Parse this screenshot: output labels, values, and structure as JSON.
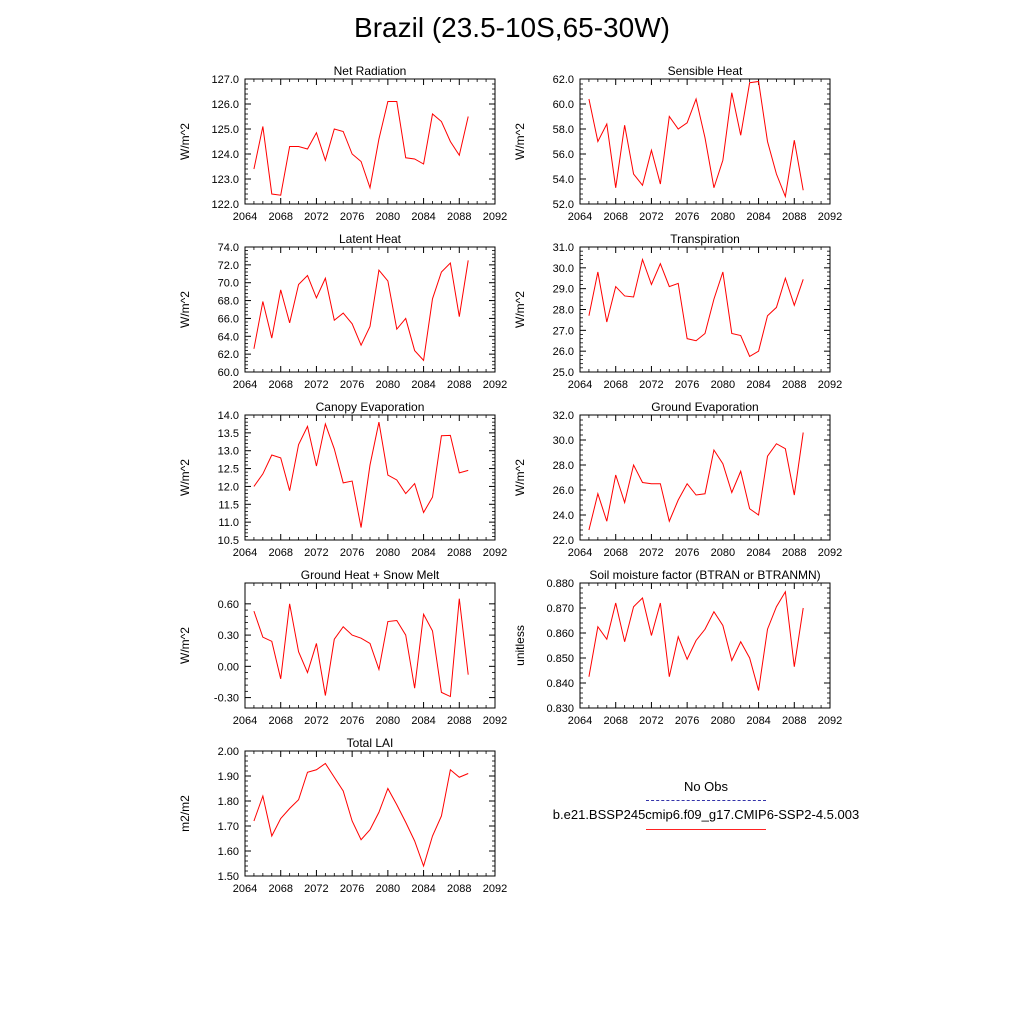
{
  "figure": {
    "title": "Brazil (23.5-10S,65-30W)",
    "legend": [
      {
        "label": "No Obs",
        "color": "#3333aa",
        "style": "dashed"
      },
      {
        "label": "b.e21.BSSP245cmip6.f09_g17.CMIP6-SSP2-4.5.003",
        "color": "#ff2222",
        "style": "solid"
      }
    ]
  },
  "chart_data": [
    {
      "type": "line",
      "title": "Net Radiation",
      "ylabel": "W/m^2",
      "xlim": [
        2064,
        2092
      ],
      "ylim": [
        122.0,
        127.0
      ],
      "xticks": [
        "2064",
        "2068",
        "2072",
        "2076",
        "2080",
        "2084",
        "2088",
        "2092"
      ],
      "yticks": [
        "122.0",
        "123.0",
        "124.0",
        "125.0",
        "126.0",
        "127.0"
      ],
      "grid": false,
      "x": [
        2065,
        2066,
        2067,
        2068,
        2069,
        2070,
        2071,
        2072,
        2073,
        2074,
        2075,
        2076,
        2077,
        2078,
        2079,
        2080,
        2081,
        2082,
        2083,
        2084,
        2085,
        2086,
        2087,
        2088,
        2089
      ],
      "series": [
        {
          "color": "#ff0000",
          "values": [
            123.4,
            125.1,
            122.4,
            122.35,
            124.3,
            124.3,
            124.2,
            124.85,
            123.75,
            125.0,
            124.9,
            124.0,
            123.7,
            122.65,
            124.6,
            126.1,
            126.1,
            123.85,
            123.8,
            123.6,
            125.6,
            125.3,
            124.5,
            123.95,
            125.5
          ]
        }
      ]
    },
    {
      "type": "line",
      "title": "Sensible Heat",
      "ylabel": "W/m^2",
      "xlim": [
        2064,
        2092
      ],
      "ylim": [
        52.0,
        62.0
      ],
      "xticks": [
        "2064",
        "2068",
        "2072",
        "2076",
        "2080",
        "2084",
        "2088",
        "2092"
      ],
      "yticks": [
        "52.0",
        "54.0",
        "56.0",
        "58.0",
        "60.0",
        "62.0"
      ],
      "grid": false,
      "x": [
        2065,
        2066,
        2067,
        2068,
        2069,
        2070,
        2071,
        2072,
        2073,
        2074,
        2075,
        2076,
        2077,
        2078,
        2079,
        2080,
        2081,
        2082,
        2083,
        2084,
        2085,
        2086,
        2087,
        2088,
        2089
      ],
      "series": [
        {
          "color": "#ff0000",
          "values": [
            60.4,
            57.0,
            58.4,
            53.3,
            58.3,
            54.4,
            53.5,
            56.3,
            53.6,
            59.0,
            58.0,
            58.5,
            60.4,
            57.3,
            53.3,
            55.5,
            60.9,
            57.5,
            61.7,
            61.8,
            57.0,
            54.4,
            52.6,
            57.1,
            53.1
          ]
        }
      ]
    },
    {
      "type": "line",
      "title": "Latent Heat",
      "ylabel": "W/m^2",
      "xlim": [
        2064,
        2092
      ],
      "ylim": [
        60.0,
        74.0
      ],
      "xticks": [
        "2064",
        "2068",
        "2072",
        "2076",
        "2080",
        "2084",
        "2088",
        "2092"
      ],
      "yticks": [
        "60.0",
        "62.0",
        "64.0",
        "66.0",
        "68.0",
        "70.0",
        "72.0",
        "74.0"
      ],
      "grid": false,
      "x": [
        2065,
        2066,
        2067,
        2068,
        2069,
        2070,
        2071,
        2072,
        2073,
        2074,
        2075,
        2076,
        2077,
        2078,
        2079,
        2080,
        2081,
        2082,
        2083,
        2084,
        2085,
        2086,
        2087,
        2088,
        2089
      ],
      "series": [
        {
          "color": "#ff0000",
          "values": [
            62.6,
            67.9,
            63.8,
            69.2,
            65.5,
            69.8,
            70.8,
            68.3,
            70.5,
            65.8,
            66.6,
            65.4,
            63.0,
            65.1,
            71.4,
            70.2,
            64.8,
            66.0,
            62.4,
            61.3,
            68.2,
            71.2,
            72.2,
            66.2,
            72.5
          ]
        }
      ]
    },
    {
      "type": "line",
      "title": "Transpiration",
      "ylabel": "W/m^2",
      "xlim": [
        2064,
        2092
      ],
      "ylim": [
        25.0,
        31.0
      ],
      "xticks": [
        "2064",
        "2068",
        "2072",
        "2076",
        "2080",
        "2084",
        "2088",
        "2092"
      ],
      "yticks": [
        "25.0",
        "26.0",
        "27.0",
        "28.0",
        "29.0",
        "30.0",
        "31.0"
      ],
      "grid": false,
      "x": [
        2065,
        2066,
        2067,
        2068,
        2069,
        2070,
        2071,
        2072,
        2073,
        2074,
        2075,
        2076,
        2077,
        2078,
        2079,
        2080,
        2081,
        2082,
        2083,
        2084,
        2085,
        2086,
        2087,
        2088,
        2089
      ],
      "series": [
        {
          "color": "#ff0000",
          "values": [
            27.7,
            29.8,
            27.4,
            29.1,
            28.65,
            28.6,
            30.4,
            29.2,
            30.2,
            29.1,
            29.25,
            26.6,
            26.5,
            26.85,
            28.5,
            29.8,
            26.85,
            26.75,
            25.75,
            26.0,
            27.7,
            28.1,
            29.5,
            28.2,
            29.45
          ]
        }
      ]
    },
    {
      "type": "line",
      "title": "Canopy Evaporation",
      "ylabel": "W/m^2",
      "xlim": [
        2064,
        2092
      ],
      "ylim": [
        10.5,
        14.0
      ],
      "xticks": [
        "2064",
        "2068",
        "2072",
        "2076",
        "2080",
        "2084",
        "2088",
        "2092"
      ],
      "yticks": [
        "10.5",
        "11.0",
        "11.5",
        "12.0",
        "12.5",
        "13.0",
        "13.5",
        "14.0"
      ],
      "grid": false,
      "x": [
        2065,
        2066,
        2067,
        2068,
        2069,
        2070,
        2071,
        2072,
        2073,
        2074,
        2075,
        2076,
        2077,
        2078,
        2079,
        2080,
        2081,
        2082,
        2083,
        2084,
        2085,
        2086,
        2087,
        2088,
        2089
      ],
      "series": [
        {
          "color": "#ff0000",
          "values": [
            12.0,
            12.35,
            12.88,
            12.8,
            11.88,
            13.17,
            13.68,
            12.57,
            13.75,
            13.05,
            12.1,
            12.15,
            10.85,
            12.6,
            13.8,
            12.32,
            12.18,
            11.8,
            12.08,
            11.27,
            11.7,
            13.42,
            13.43,
            12.38,
            12.45
          ]
        }
      ]
    },
    {
      "type": "line",
      "title": "Ground Evaporation",
      "ylabel": "W/m^2",
      "xlim": [
        2064,
        2092
      ],
      "ylim": [
        22.0,
        32.0
      ],
      "xticks": [
        "2064",
        "2068",
        "2072",
        "2076",
        "2080",
        "2084",
        "2088",
        "2092"
      ],
      "yticks": [
        "22.0",
        "24.0",
        "26.0",
        "28.0",
        "30.0",
        "32.0"
      ],
      "grid": false,
      "x": [
        2065,
        2066,
        2067,
        2068,
        2069,
        2070,
        2071,
        2072,
        2073,
        2074,
        2075,
        2076,
        2077,
        2078,
        2079,
        2080,
        2081,
        2082,
        2083,
        2084,
        2085,
        2086,
        2087,
        2088,
        2089
      ],
      "series": [
        {
          "color": "#ff0000",
          "values": [
            22.8,
            25.7,
            23.5,
            27.2,
            25.0,
            28.0,
            26.6,
            26.5,
            26.5,
            23.5,
            25.2,
            26.5,
            25.6,
            25.7,
            29.2,
            28.1,
            25.8,
            27.5,
            24.5,
            24.0,
            28.7,
            29.7,
            29.3,
            25.6,
            30.6
          ]
        }
      ]
    },
    {
      "type": "line",
      "title": "Ground Heat + Snow Melt",
      "ylabel": "W/m^2",
      "xlim": [
        2064,
        2092
      ],
      "ylim": [
        -0.4,
        0.8
      ],
      "xticks": [
        "2064",
        "2068",
        "2072",
        "2076",
        "2080",
        "2084",
        "2088",
        "2092"
      ],
      "yticks": [
        "-0.30",
        "0.00",
        "0.30",
        "0.60"
      ],
      "ytick_values": [
        -0.3,
        0.0,
        0.3,
        0.6
      ],
      "grid": false,
      "x": [
        2065,
        2066,
        2067,
        2068,
        2069,
        2070,
        2071,
        2072,
        2073,
        2074,
        2075,
        2076,
        2077,
        2078,
        2079,
        2080,
        2081,
        2082,
        2083,
        2084,
        2085,
        2086,
        2087,
        2088,
        2089
      ],
      "series": [
        {
          "color": "#ff0000",
          "values": [
            0.53,
            0.28,
            0.24,
            -0.12,
            0.6,
            0.14,
            -0.06,
            0.22,
            -0.28,
            0.26,
            0.38,
            0.3,
            0.27,
            0.22,
            -0.03,
            0.43,
            0.44,
            0.3,
            -0.21,
            0.5,
            0.34,
            -0.25,
            -0.29,
            0.65,
            -0.08
          ]
        }
      ]
    },
    {
      "type": "line",
      "title": "Soil moisture factor (BTRAN or BTRANMN)",
      "ylabel": "unitless",
      "xlim": [
        2064,
        2092
      ],
      "ylim": [
        0.83,
        0.88
      ],
      "xticks": [
        "2064",
        "2068",
        "2072",
        "2076",
        "2080",
        "2084",
        "2088",
        "2092"
      ],
      "yticks": [
        "0.830",
        "0.840",
        "0.850",
        "0.860",
        "0.870",
        "0.880"
      ],
      "grid": false,
      "x": [
        2065,
        2066,
        2067,
        2068,
        2069,
        2070,
        2071,
        2072,
        2073,
        2074,
        2075,
        2076,
        2077,
        2078,
        2079,
        2080,
        2081,
        2082,
        2083,
        2084,
        2085,
        2086,
        2087,
        2088,
        2089
      ],
      "series": [
        {
          "color": "#ff0000",
          "values": [
            0.8425,
            0.8625,
            0.8575,
            0.872,
            0.8565,
            0.8705,
            0.874,
            0.859,
            0.872,
            0.8425,
            0.8585,
            0.8495,
            0.857,
            0.8615,
            0.8685,
            0.863,
            0.849,
            0.8565,
            0.85,
            0.837,
            0.8615,
            0.8705,
            0.8765,
            0.8465,
            0.87
          ]
        }
      ]
    },
    {
      "type": "line",
      "title": "Total LAI",
      "ylabel": "m2/m2",
      "xlim": [
        2064,
        2092
      ],
      "ylim": [
        1.5,
        2.0
      ],
      "xticks": [
        "2064",
        "2068",
        "2072",
        "2076",
        "2080",
        "2084",
        "2088",
        "2092"
      ],
      "yticks": [
        "1.50",
        "1.60",
        "1.70",
        "1.80",
        "1.90",
        "2.00"
      ],
      "grid": false,
      "x": [
        2065,
        2066,
        2067,
        2068,
        2069,
        2070,
        2071,
        2072,
        2073,
        2074,
        2075,
        2076,
        2077,
        2078,
        2079,
        2080,
        2081,
        2082,
        2083,
        2084,
        2085,
        2086,
        2087,
        2088,
        2089
      ],
      "series": [
        {
          "color": "#ff0000",
          "values": [
            1.72,
            1.82,
            1.66,
            1.73,
            1.77,
            1.805,
            1.915,
            1.925,
            1.95,
            1.895,
            1.84,
            1.72,
            1.645,
            1.685,
            1.755,
            1.85,
            1.785,
            1.715,
            1.64,
            1.54,
            1.66,
            1.74,
            1.925,
            1.895,
            1.91
          ]
        }
      ]
    }
  ]
}
